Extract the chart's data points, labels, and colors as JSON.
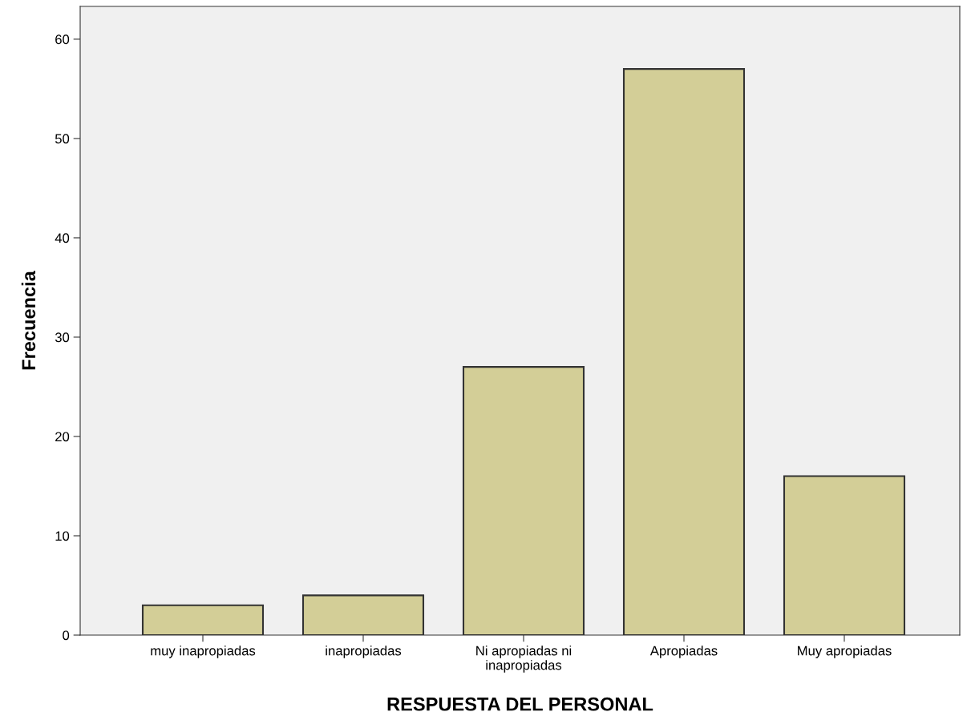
{
  "chart_data": {
    "type": "bar",
    "xlabel": "RESPUESTA DEL PERSONAL",
    "ylabel": "Frecuencia",
    "categories": [
      "muy inapropiadas",
      "inapropiadas",
      "Ni apropiadas ni inapropiadas",
      "Apropiadas",
      "Muy apropiadas"
    ],
    "values": [
      3,
      4,
      27,
      57,
      16
    ],
    "color": "#d3ce97",
    "ylim": [
      0,
      63.3
    ],
    "yticks": [
      0,
      10,
      20,
      30,
      40,
      50,
      60
    ],
    "grid": false
  }
}
